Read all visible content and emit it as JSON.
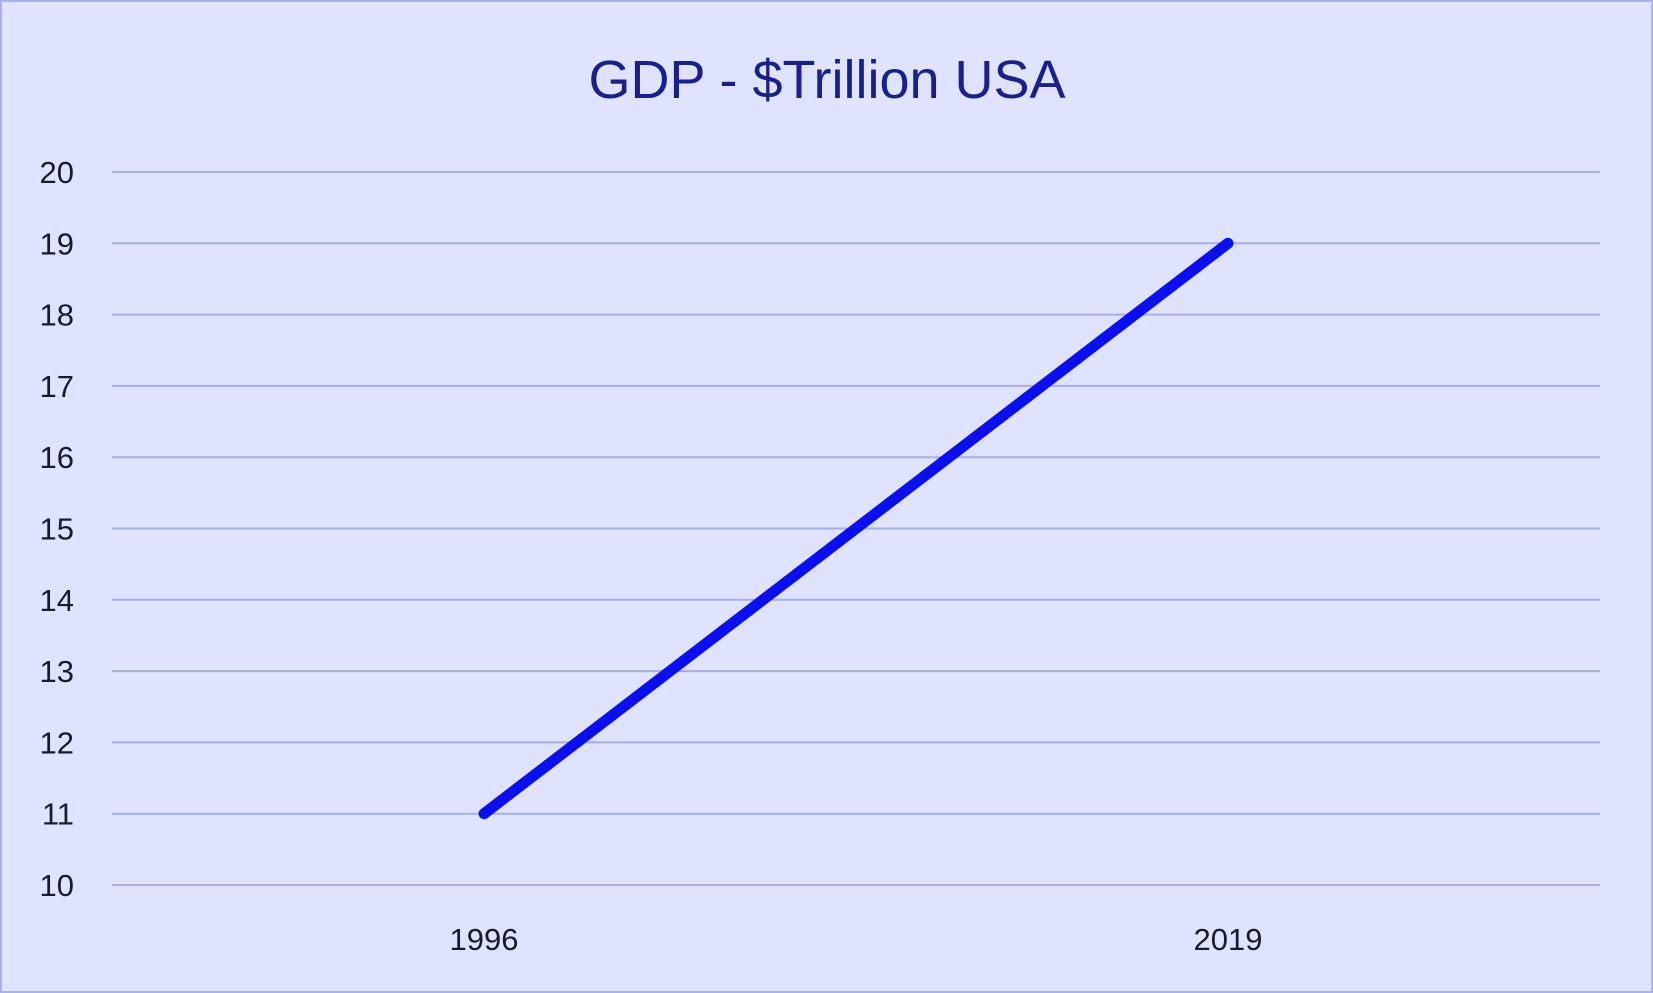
{
  "chart_data": {
    "type": "line",
    "title": "GDP - $Trillion USA",
    "xlabel": "",
    "ylabel": "",
    "categories": [
      "1996",
      "2019"
    ],
    "series": [
      {
        "values": [
          11,
          19
        ]
      }
    ],
    "ylim": [
      10,
      20
    ],
    "yticks": [
      10,
      11,
      12,
      13,
      14,
      15,
      16,
      17,
      18,
      19,
      20
    ],
    "grid": "horizontal",
    "legend": "none",
    "colors": {
      "background": "#dfe3ff",
      "line": "#0a0ff0",
      "gridline": "#a7aee8",
      "title": "#1a1f8c"
    }
  }
}
